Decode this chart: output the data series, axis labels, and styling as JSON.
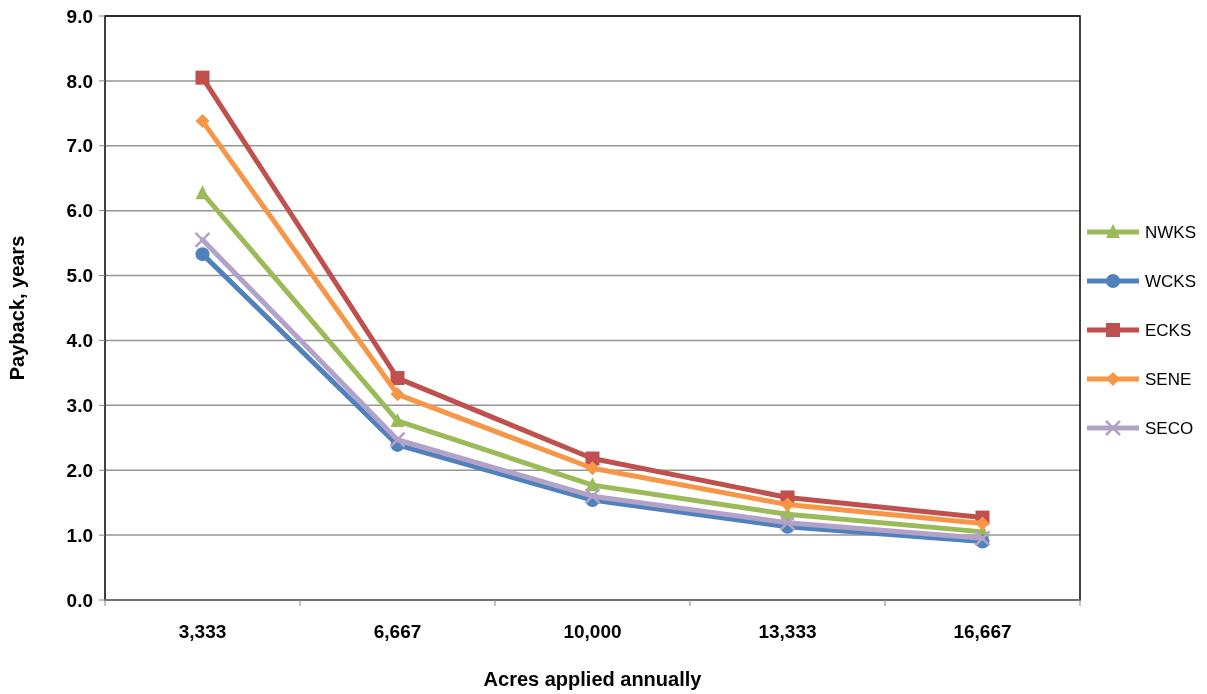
{
  "chart_data": {
    "type": "line",
    "xlabel": "Acres applied annually",
    "ylabel": "Payback, years",
    "categories": [
      "3,333",
      "6,667",
      "10,000",
      "13,333",
      "16,667"
    ],
    "series": [
      {
        "name": "NWKS",
        "color": "#9bbb59",
        "marker": "triangle",
        "values": [
          6.27,
          2.76,
          1.77,
          1.32,
          1.05
        ]
      },
      {
        "name": "WCKS",
        "color": "#4f81bd",
        "marker": "circle",
        "values": [
          5.33,
          2.39,
          1.54,
          1.13,
          0.9
        ]
      },
      {
        "name": "ECKS",
        "color": "#c0504d",
        "marker": "square",
        "values": [
          8.05,
          3.42,
          2.18,
          1.58,
          1.27
        ]
      },
      {
        "name": "SENE",
        "color": "#f79646",
        "marker": "diamond",
        "values": [
          7.38,
          3.17,
          2.03,
          1.47,
          1.18
        ]
      },
      {
        "name": "SECO",
        "color": "#b3a2c7",
        "marker": "cross",
        "values": [
          5.55,
          2.47,
          1.6,
          1.19,
          0.95
        ]
      }
    ],
    "ylim": [
      0,
      9
    ],
    "yticks": [
      {
        "value": 0,
        "label": "0.0"
      },
      {
        "value": 1,
        "label": "1.0"
      },
      {
        "value": 2,
        "label": "2.0"
      },
      {
        "value": 3,
        "label": "3.0"
      },
      {
        "value": 4,
        "label": "4.0"
      },
      {
        "value": 5,
        "label": "5.0"
      },
      {
        "value": 6,
        "label": "6.0"
      },
      {
        "value": 7,
        "label": "7.0"
      },
      {
        "value": 8,
        "label": "8.0"
      },
      {
        "value": 9,
        "label": "9.0"
      }
    ],
    "grid": "y",
    "legend": "right",
    "line_style": "solid"
  }
}
